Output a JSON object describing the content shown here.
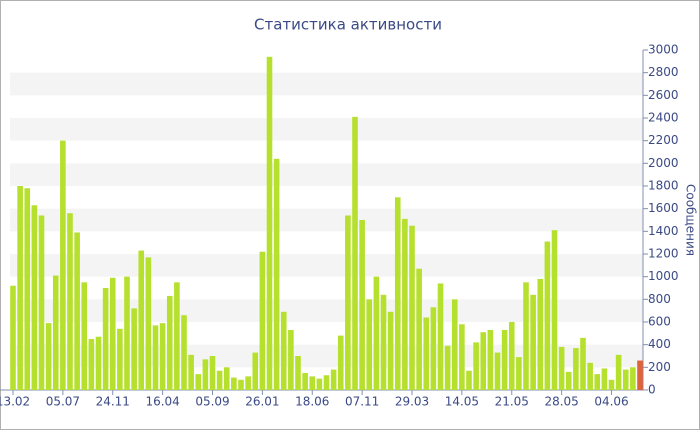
{
  "chart_data": {
    "type": "bar",
    "title": "Статистика активности",
    "y_label": "Сообщения",
    "categories": [
      "13.02",
      null,
      null,
      null,
      null,
      null,
      null,
      "05.07",
      null,
      null,
      null,
      null,
      null,
      null,
      "24.11",
      null,
      null,
      null,
      null,
      null,
      null,
      "16.04",
      null,
      null,
      null,
      null,
      null,
      null,
      "05.09",
      null,
      null,
      null,
      null,
      null,
      null,
      "26.01",
      null,
      null,
      null,
      null,
      null,
      null,
      "18.06",
      null,
      null,
      null,
      null,
      null,
      null,
      "07.11",
      null,
      null,
      null,
      null,
      null,
      null,
      "29.03",
      null,
      null,
      null,
      null,
      null,
      null,
      "14.05",
      null,
      null,
      null,
      null,
      null,
      null,
      "21.05",
      null,
      null,
      null,
      null,
      null,
      null,
      "28.05",
      null,
      null,
      null,
      null,
      null,
      null,
      "04.06",
      null,
      null,
      null,
      null
    ],
    "values": [
      920,
      1800,
      1780,
      1630,
      1540,
      590,
      1010,
      2200,
      1560,
      1390,
      950,
      450,
      470,
      900,
      990,
      540,
      1000,
      720,
      1230,
      1170,
      570,
      590,
      830,
      950,
      660,
      310,
      140,
      270,
      300,
      170,
      200,
      110,
      90,
      120,
      330,
      1220,
      2940,
      2040,
      690,
      530,
      300,
      150,
      120,
      100,
      130,
      180,
      480,
      1540,
      2410,
      1500,
      800,
      1000,
      840,
      690,
      1700,
      1510,
      1450,
      1070,
      640,
      730,
      940,
      390,
      800,
      580,
      170,
      420,
      510,
      530,
      330,
      530,
      600,
      290,
      950,
      840,
      980,
      1310,
      1410,
      380,
      160,
      370,
      460,
      240,
      140,
      190,
      90,
      310,
      180,
      200,
      260
    ],
    "color": "#b5e02e",
    "last_point_color": "#e0643a",
    "ylim": [
      0,
      3000
    ],
    "yticks": [
      0,
      200,
      400,
      600,
      800,
      1000,
      1200,
      1400,
      1600,
      1800,
      2000,
      2200,
      2400,
      2600,
      2800,
      3000
    ],
    "grid": true
  }
}
